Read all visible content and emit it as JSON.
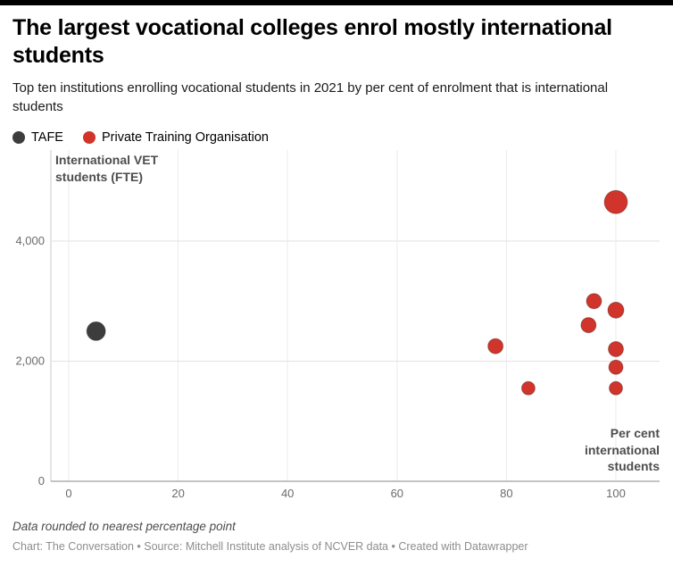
{
  "page": {
    "title": "The largest vocational colleges enrol mostly international students",
    "subtitle": "Top ten institutions enrolling vocational students in 2021 by per cent of enrolment that is international students"
  },
  "legend": {
    "items": [
      {
        "label": "TAFE",
        "color": "#3d3d3d"
      },
      {
        "label": "Private Training Organisation",
        "color": "#d0342a"
      }
    ]
  },
  "chart_data": {
    "type": "scatter",
    "title": "The largest vocational colleges enrol mostly international students",
    "subtitle": "Top ten institutions enrolling vocational students in 2021 by per cent of enrolment that is international students",
    "xlabel": "Per cent international students",
    "ylabel": "International VET students (FTE)",
    "xlim": [
      0,
      108
    ],
    "ylim": [
      0,
      5200
    ],
    "x_ticks": [
      0,
      20,
      40,
      60,
      80,
      100
    ],
    "y_ticks": [
      0,
      2000,
      4000
    ],
    "y_tick_labels": [
      "0",
      "2,000",
      "4,000"
    ],
    "grid": "both",
    "legend_position": "top",
    "series": [
      {
        "name": "TAFE",
        "color": "#3d3d3d",
        "points": [
          {
            "x": 5,
            "y": 2500,
            "r": 10.5
          }
        ]
      },
      {
        "name": "Private Training Organisation",
        "color": "#d0342a",
        "points": [
          {
            "x": 78,
            "y": 2250,
            "r": 8.5
          },
          {
            "x": 84,
            "y": 1550,
            "r": 7.5
          },
          {
            "x": 95,
            "y": 2600,
            "r": 8.5
          },
          {
            "x": 96,
            "y": 3000,
            "r": 8.5
          },
          {
            "x": 100,
            "y": 4650,
            "r": 13
          },
          {
            "x": 100,
            "y": 2850,
            "r": 9
          },
          {
            "x": 100,
            "y": 2200,
            "r": 8.5
          },
          {
            "x": 100,
            "y": 1900,
            "r": 8
          },
          {
            "x": 100,
            "y": 1550,
            "r": 7.5
          }
        ]
      }
    ]
  },
  "footer": {
    "note": "Data rounded to nearest percentage point",
    "credit": "Chart: The Conversation • Source: Mitchell Institute analysis of NCVER data • Created with Datawrapper"
  }
}
